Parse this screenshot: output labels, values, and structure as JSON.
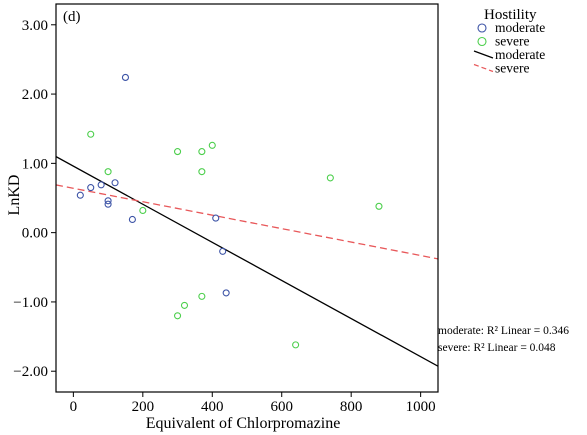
{
  "chart_data": {
    "type": "scatter",
    "panel_label": "(d)",
    "xlabel": "Equivalent of Chlorpromazine",
    "ylabel": "LnKD",
    "xlim": [
      -50,
      1050
    ],
    "ylim": [
      -2.3,
      3.3
    ],
    "x_ticks": [
      0,
      200,
      400,
      600,
      800,
      1000
    ],
    "x_tick_labels": [
      "0",
      "200",
      "400",
      "600",
      "800",
      "1000"
    ],
    "y_ticks": [
      3,
      2,
      1,
      0,
      -1,
      -2
    ],
    "y_tick_labels": [
      "3.00",
      "2.00",
      "1.00",
      "0.00",
      "−1.00",
      "−2.00"
    ],
    "grid": false,
    "legend": {
      "title": "Hostility",
      "placement": "outside-right-top",
      "entries": [
        {
          "label": "moderate",
          "kind": "marker",
          "series": "moderate"
        },
        {
          "label": "severe",
          "kind": "marker",
          "series": "severe"
        },
        {
          "label": "moderate",
          "kind": "line",
          "series": "moderate"
        },
        {
          "label": "severe",
          "kind": "line",
          "series": "severe"
        }
      ]
    },
    "series": [
      {
        "name": "moderate",
        "color": "#3c53a6",
        "marker": "open-circle",
        "points": [
          {
            "x": 20,
            "y": 0.54
          },
          {
            "x": 50,
            "y": 0.65
          },
          {
            "x": 80,
            "y": 0.69
          },
          {
            "x": 100,
            "y": 0.46
          },
          {
            "x": 100,
            "y": 0.41
          },
          {
            "x": 120,
            "y": 0.72
          },
          {
            "x": 150,
            "y": 2.24
          },
          {
            "x": 170,
            "y": 0.19
          },
          {
            "x": 410,
            "y": 0.21
          },
          {
            "x": 430,
            "y": -0.27
          },
          {
            "x": 440,
            "y": -0.87
          }
        ]
      },
      {
        "name": "severe",
        "color": "#4ccf4c",
        "marker": "open-circle",
        "points": [
          {
            "x": 50,
            "y": 1.42
          },
          {
            "x": 100,
            "y": 0.88
          },
          {
            "x": 200,
            "y": 0.32
          },
          {
            "x": 300,
            "y": 1.17
          },
          {
            "x": 300,
            "y": -1.2
          },
          {
            "x": 320,
            "y": -1.05
          },
          {
            "x": 370,
            "y": 1.17
          },
          {
            "x": 370,
            "y": 0.88
          },
          {
            "x": 370,
            "y": -0.92
          },
          {
            "x": 400,
            "y": 1.26
          },
          {
            "x": 640,
            "y": -1.62
          },
          {
            "x": 740,
            "y": 0.79
          },
          {
            "x": 880,
            "y": 0.38
          }
        ]
      }
    ],
    "fit_lines": [
      {
        "series": "moderate",
        "color": "#000000",
        "style": "solid",
        "intercept": 0.96,
        "slope": -0.00275,
        "r2_label": "moderate: R² Linear = 0.346"
      },
      {
        "series": "severe",
        "color": "#e8585a",
        "style": "dashed",
        "intercept": 0.64,
        "slope": -0.00097,
        "r2_label": "severe: R² Linear = 0.048"
      }
    ]
  }
}
